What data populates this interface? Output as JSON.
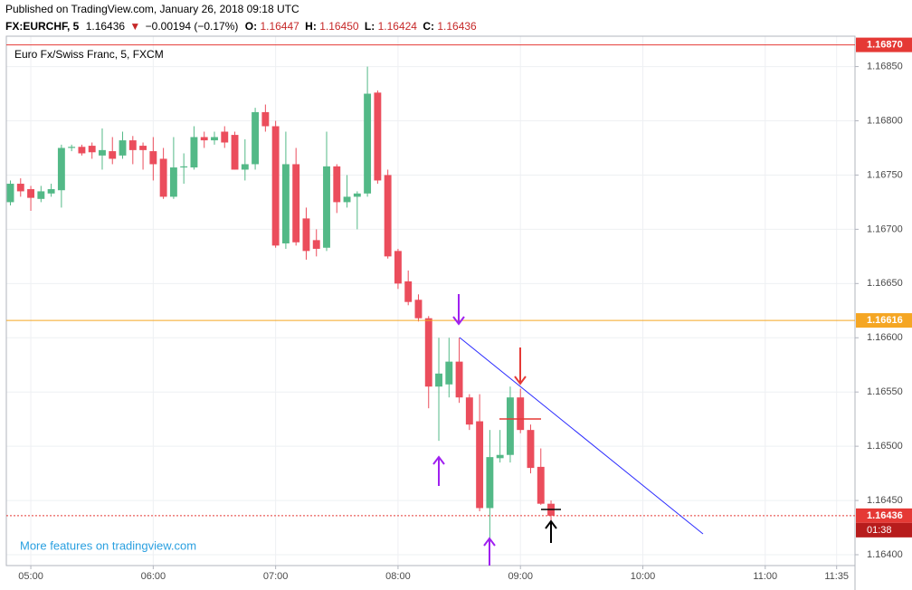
{
  "header": {
    "published": "Published on TradingView.com, January 26, 2018 09:18 UTC",
    "symbol": "FX:EURCHF, 5",
    "last": "1.16436",
    "arrow": "▼",
    "change": "−0.00194 (−0.17%)",
    "o_label": "O:",
    "o": "1.16447",
    "h_label": "H:",
    "h": "1.16450",
    "l_label": "L:",
    "l": "1.16424",
    "c_label": "C:",
    "c": "1.16436"
  },
  "chart_data": {
    "type": "candlestick",
    "legend_title": "Euro Fx/Swiss Franc, 5, FXCM",
    "watermark": "More features on tradingview.com",
    "up_color": "#53b987",
    "down_color": "#eb4d5c",
    "grid": true,
    "x": [
      "04:50",
      "04:55",
      "05:00",
      "05:05",
      "05:10",
      "05:15",
      "05:20",
      "05:25",
      "05:30",
      "05:35",
      "05:40",
      "05:45",
      "05:50",
      "05:55",
      "06:00",
      "06:05",
      "06:10",
      "06:15",
      "06:20",
      "06:25",
      "06:30",
      "06:35",
      "06:40",
      "06:45",
      "06:50",
      "06:55",
      "07:00",
      "07:05",
      "07:10",
      "07:15",
      "07:20",
      "07:25",
      "07:30",
      "07:35",
      "07:40",
      "07:45",
      "07:50",
      "07:55",
      "08:00",
      "08:05",
      "08:10",
      "08:15",
      "08:20",
      "08:25",
      "08:30",
      "08:35",
      "08:40",
      "08:45",
      "08:50",
      "08:55",
      "09:00",
      "09:05",
      "09:10",
      "09:15"
    ],
    "open": [
      1.16725,
      1.16742,
      1.16737,
      1.16728,
      1.16733,
      1.16736,
      1.16775,
      1.16776,
      1.16777,
      1.16768,
      1.16772,
      1.16768,
      1.16782,
      1.16777,
      1.16772,
      1.16765,
      1.1673,
      1.16757,
      1.16757,
      1.16785,
      1.16782,
      1.1679,
      1.16787,
      1.16755,
      1.1676,
      1.16808,
      1.16795,
      1.16687,
      1.1676,
      1.1671,
      1.1669,
      1.16683,
      1.16758,
      1.16725,
      1.1673,
      1.16733,
      1.16826,
      1.1675,
      1.1668,
      1.16652,
      1.16635,
      1.16618,
      1.16555,
      1.16557,
      1.16578,
      1.16545,
      1.16523,
      1.16443,
      1.16489,
      1.16492,
      1.16545,
      1.16515,
      1.16481,
      1.16447
    ],
    "high": [
      1.16745,
      1.16747,
      1.1674,
      1.1674,
      1.16742,
      1.16778,
      1.16778,
      1.16778,
      1.1678,
      1.16793,
      1.16785,
      1.1679,
      1.16786,
      1.1678,
      1.16785,
      1.16775,
      1.16785,
      1.1677,
      1.16795,
      1.1679,
      1.1679,
      1.16795,
      1.1679,
      1.16783,
      1.16812,
      1.16815,
      1.168,
      1.1679,
      1.16775,
      1.1672,
      1.167,
      1.1679,
      1.1676,
      1.1675,
      1.16735,
      1.1685,
      1.16828,
      1.16755,
      1.16682,
      1.16662,
      1.1664,
      1.1662,
      1.166,
      1.166,
      1.166,
      1.16548,
      1.16548,
      1.16515,
      1.16515,
      1.16555,
      1.16553,
      1.1652,
      1.16498,
      1.1645
    ],
    "low": [
      1.16722,
      1.1673,
      1.16717,
      1.16725,
      1.1673,
      1.1672,
      1.16772,
      1.16768,
      1.16765,
      1.16755,
      1.1676,
      1.16765,
      1.1676,
      1.16755,
      1.16745,
      1.16728,
      1.16728,
      1.16742,
      1.16755,
      1.16775,
      1.16778,
      1.16775,
      1.16755,
      1.16745,
      1.16755,
      1.1679,
      1.16683,
      1.16682,
      1.16685,
      1.16672,
      1.16675,
      1.1668,
      1.16715,
      1.1672,
      1.167,
      1.1673,
      1.16742,
      1.16673,
      1.16645,
      1.1663,
      1.16615,
      1.16535,
      1.16505,
      1.16545,
      1.1654,
      1.16515,
      1.1644,
      1.1641,
      1.16485,
      1.16485,
      1.16512,
      1.16475,
      1.16446,
      1.16424
    ],
    "close": [
      1.16742,
      1.16735,
      1.16729,
      1.16735,
      1.16737,
      1.16775,
      1.16776,
      1.1677,
      1.16771,
      1.16773,
      1.16765,
      1.16782,
      1.16773,
      1.16773,
      1.1676,
      1.1673,
      1.16757,
      1.16758,
      1.16785,
      1.16782,
      1.16785,
      1.1678,
      1.16755,
      1.1676,
      1.16808,
      1.16795,
      1.16685,
      1.1676,
      1.16688,
      1.1668,
      1.16682,
      1.16758,
      1.16725,
      1.1673,
      1.16733,
      1.16825,
      1.16745,
      1.16675,
      1.1665,
      1.16633,
      1.16618,
      1.16555,
      1.16567,
      1.16578,
      1.16545,
      1.1652,
      1.16443,
      1.1649,
      1.16492,
      1.16545,
      1.16515,
      1.1648,
      1.16447,
      1.16436
    ],
    "xlim": [
      "04:48",
      "11:44"
    ],
    "xticks": [
      "05:00",
      "06:00",
      "07:00",
      "08:00",
      "09:00",
      "10:00",
      "11:00",
      "11:35"
    ],
    "ylim": [
      1.1639,
      1.16878
    ],
    "yticks": [
      {
        "value": 1.164,
        "label": "1.16400"
      },
      {
        "value": 1.1645,
        "label": "1.16450"
      },
      {
        "value": 1.165,
        "label": "1.16500"
      },
      {
        "value": 1.1655,
        "label": "1.16550"
      },
      {
        "value": 1.166,
        "label": "1.16600"
      },
      {
        "value": 1.1665,
        "label": "1.16650"
      },
      {
        "value": 1.167,
        "label": "1.16700"
      },
      {
        "value": 1.1675,
        "label": "1.16750"
      },
      {
        "value": 1.168,
        "label": "1.16800"
      },
      {
        "value": 1.1685,
        "label": "1.16850"
      }
    ],
    "price_lines": [
      {
        "value": 1.1687,
        "label": "1.16870",
        "color": "#e53935",
        "style": "solid"
      },
      {
        "value": 1.16616,
        "color": "#f5a623",
        "style": "solid"
      },
      {
        "value": 1.16436,
        "color": "#e53935",
        "style": "dotted"
      }
    ],
    "countdown": "01:38"
  }
}
